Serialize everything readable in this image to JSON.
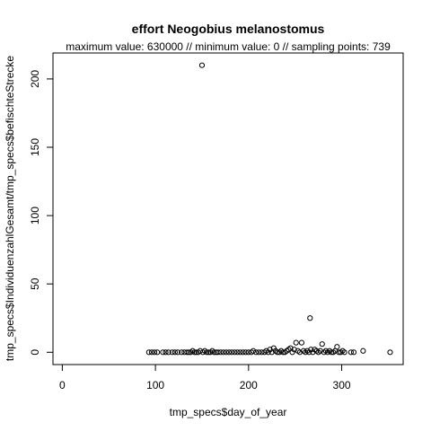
{
  "chart_data": {
    "type": "scatter",
    "title": "effort Neogobius melanostomus",
    "subtitle": "maximum value: 630000  //  minimum value: 0  // sampling points: 739",
    "xlabel": "tmp_specs$day_of_year",
    "ylabel": "tmp_specs$IndividuenzahlGesamt/tmp_specs$befischteStrecke",
    "xlim": [
      -10,
      366
    ],
    "ylim": [
      -9,
      219
    ],
    "xticks": [
      0,
      100,
      200,
      300
    ],
    "yticks": [
      0,
      50,
      100,
      150,
      200
    ],
    "grid": false,
    "marker": "open-circle",
    "points": [
      {
        "x": 93,
        "y": 0
      },
      {
        "x": 96,
        "y": 0
      },
      {
        "x": 99,
        "y": 0
      },
      {
        "x": 102,
        "y": 0
      },
      {
        "x": 108,
        "y": 0
      },
      {
        "x": 111,
        "y": 0
      },
      {
        "x": 114,
        "y": 0
      },
      {
        "x": 118,
        "y": 0
      },
      {
        "x": 121,
        "y": 0
      },
      {
        "x": 124,
        "y": 0
      },
      {
        "x": 128,
        "y": 0
      },
      {
        "x": 131,
        "y": 0
      },
      {
        "x": 134,
        "y": 0
      },
      {
        "x": 136,
        "y": 0
      },
      {
        "x": 138,
        "y": 0
      },
      {
        "x": 140,
        "y": 1
      },
      {
        "x": 142,
        "y": 0
      },
      {
        "x": 144,
        "y": 0
      },
      {
        "x": 146,
        "y": 0
      },
      {
        "x": 148,
        "y": 1
      },
      {
        "x": 150,
        "y": 210
      },
      {
        "x": 151,
        "y": 0
      },
      {
        "x": 153,
        "y": 1
      },
      {
        "x": 155,
        "y": 0
      },
      {
        "x": 157,
        "y": 0
      },
      {
        "x": 159,
        "y": 0
      },
      {
        "x": 161,
        "y": 1
      },
      {
        "x": 163,
        "y": 0
      },
      {
        "x": 165,
        "y": 0
      },
      {
        "x": 167,
        "y": 0
      },
      {
        "x": 170,
        "y": 0
      },
      {
        "x": 173,
        "y": 0
      },
      {
        "x": 176,
        "y": 0
      },
      {
        "x": 179,
        "y": 0
      },
      {
        "x": 182,
        "y": 0
      },
      {
        "x": 185,
        "y": 0
      },
      {
        "x": 188,
        "y": 0
      },
      {
        "x": 191,
        "y": 0
      },
      {
        "x": 194,
        "y": 0
      },
      {
        "x": 197,
        "y": 0
      },
      {
        "x": 200,
        "y": 0
      },
      {
        "x": 203,
        "y": 0
      },
      {
        "x": 205,
        "y": 1
      },
      {
        "x": 208,
        "y": 0
      },
      {
        "x": 211,
        "y": 0
      },
      {
        "x": 214,
        "y": 0
      },
      {
        "x": 217,
        "y": 0
      },
      {
        "x": 219,
        "y": 1
      },
      {
        "x": 221,
        "y": 0
      },
      {
        "x": 223,
        "y": 2
      },
      {
        "x": 225,
        "y": 0
      },
      {
        "x": 227,
        "y": 3
      },
      {
        "x": 229,
        "y": 1
      },
      {
        "x": 231,
        "y": 0
      },
      {
        "x": 233,
        "y": 0
      },
      {
        "x": 235,
        "y": 1
      },
      {
        "x": 237,
        "y": 0
      },
      {
        "x": 239,
        "y": 0
      },
      {
        "x": 241,
        "y": 1
      },
      {
        "x": 243,
        "y": 2
      },
      {
        "x": 245,
        "y": 3
      },
      {
        "x": 247,
        "y": 0
      },
      {
        "x": 249,
        "y": 2
      },
      {
        "x": 251,
        "y": 7
      },
      {
        "x": 253,
        "y": 1
      },
      {
        "x": 255,
        "y": 0
      },
      {
        "x": 257,
        "y": 7
      },
      {
        "x": 259,
        "y": 1
      },
      {
        "x": 261,
        "y": 0
      },
      {
        "x": 263,
        "y": 1
      },
      {
        "x": 265,
        "y": 0
      },
      {
        "x": 266,
        "y": 25
      },
      {
        "x": 267,
        "y": 2
      },
      {
        "x": 269,
        "y": 0
      },
      {
        "x": 271,
        "y": 2
      },
      {
        "x": 273,
        "y": 1
      },
      {
        "x": 275,
        "y": 0
      },
      {
        "x": 277,
        "y": 1
      },
      {
        "x": 279,
        "y": 6
      },
      {
        "x": 281,
        "y": 0
      },
      {
        "x": 283,
        "y": 1
      },
      {
        "x": 285,
        "y": 0
      },
      {
        "x": 287,
        "y": 1
      },
      {
        "x": 289,
        "y": 0
      },
      {
        "x": 291,
        "y": 0
      },
      {
        "x": 293,
        "y": 1
      },
      {
        "x": 295,
        "y": 4
      },
      {
        "x": 297,
        "y": 0
      },
      {
        "x": 299,
        "y": 0
      },
      {
        "x": 301,
        "y": 1
      },
      {
        "x": 303,
        "y": 0
      },
      {
        "x": 310,
        "y": 0
      },
      {
        "x": 313,
        "y": 0
      },
      {
        "x": 323,
        "y": 1
      },
      {
        "x": 352,
        "y": 0
      }
    ]
  }
}
